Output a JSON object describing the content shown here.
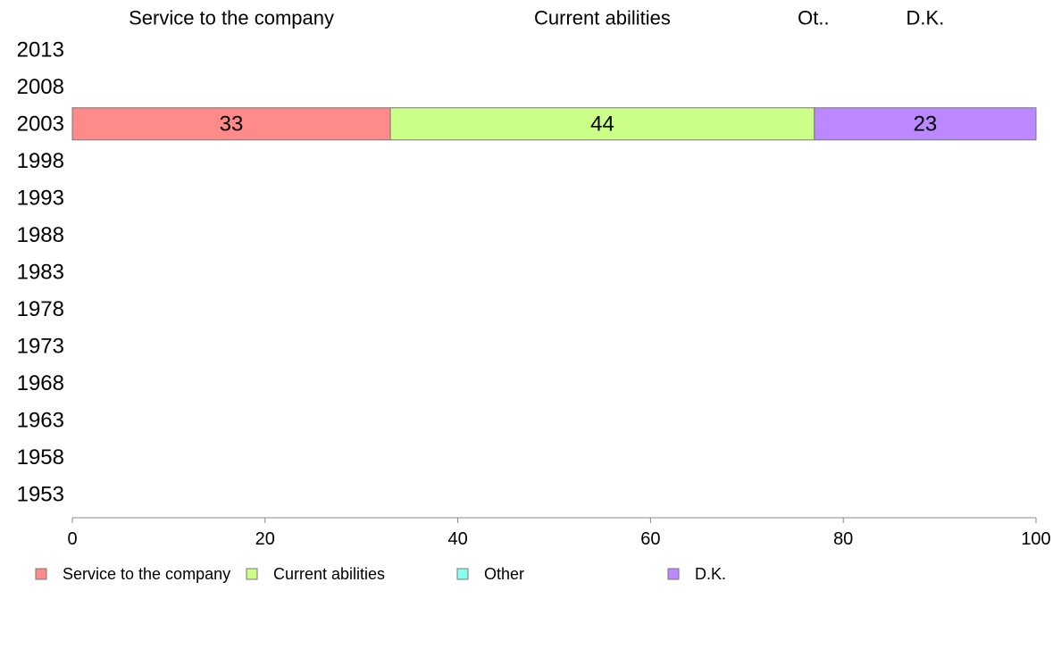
{
  "chart_data": {
    "type": "bar",
    "orientation": "horizontal",
    "stacked": true,
    "normalized_percent": true,
    "categories": [
      "2013",
      "2008",
      "2003",
      "1998",
      "1993",
      "1988",
      "1983",
      "1978",
      "1973",
      "1968",
      "1963",
      "1958",
      "1953"
    ],
    "series": [
      {
        "name": "Service to the company",
        "color": "#ff8a8a",
        "values": [
          null,
          null,
          33,
          null,
          null,
          null,
          null,
          null,
          null,
          null,
          null,
          null,
          null
        ]
      },
      {
        "name": "Current abilities",
        "color": "#ccff88",
        "values": [
          null,
          null,
          44,
          null,
          null,
          null,
          null,
          null,
          null,
          null,
          null,
          null,
          null
        ]
      },
      {
        "name": "Other",
        "color": "#88ffee",
        "values": [
          null,
          null,
          0,
          null,
          null,
          null,
          null,
          null,
          null,
          null,
          null,
          null,
          null
        ]
      },
      {
        "name": "D.K.",
        "color": "#bb88ff",
        "values": [
          null,
          null,
          23,
          null,
          null,
          null,
          null,
          null,
          null,
          null,
          null,
          null,
          null
        ]
      }
    ],
    "column_headers": [
      "Service to the company",
      "Current abilities",
      "Ot..",
      "D.K."
    ],
    "xlim": [
      0,
      100
    ],
    "xticks": [
      "0",
      "20",
      "40",
      "60",
      "80",
      "100"
    ],
    "title": "",
    "xlabel": "",
    "ylabel": "",
    "grid": false,
    "legend": {
      "position": "bottom",
      "entries": [
        "Service to the company",
        "Current abilities",
        "Other",
        "D.K."
      ]
    }
  }
}
